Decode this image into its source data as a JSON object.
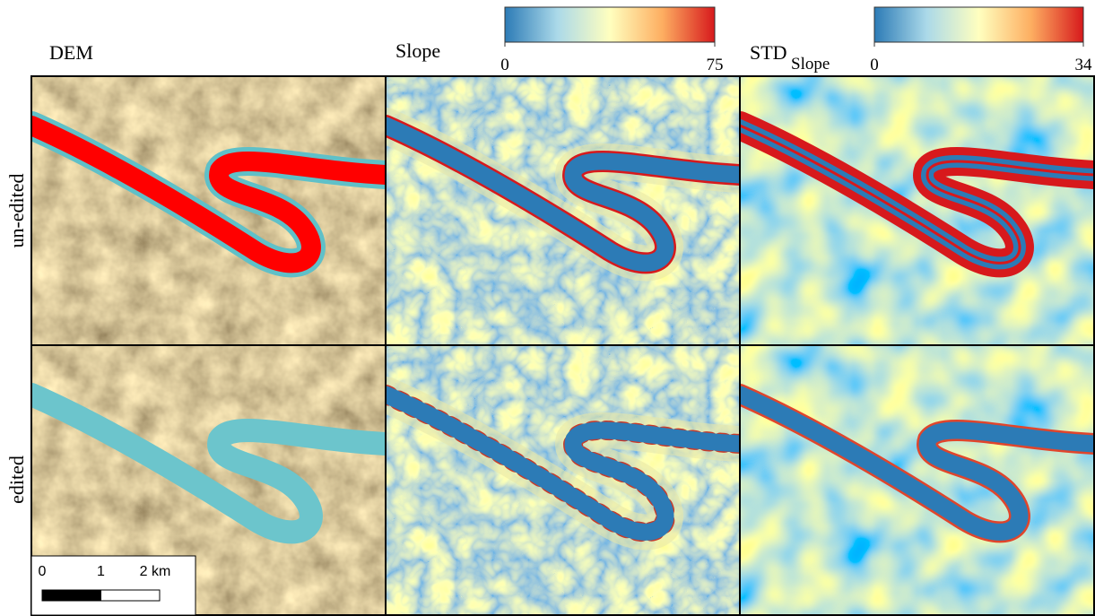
{
  "columns": [
    {
      "title": "DEM"
    },
    {
      "title": "Slope"
    },
    {
      "title": "STD",
      "subscript": "Slope"
    }
  ],
  "rows": [
    {
      "label": "un-edited"
    },
    {
      "label": "edited"
    }
  ],
  "colorbars": [
    {
      "for": "Slope",
      "ticks": [
        0,
        75
      ]
    },
    {
      "for": "STD",
      "ticks": [
        0,
        34
      ]
    }
  ],
  "scale_bar": {
    "ticks": [
      0,
      1,
      {
        "value": 2,
        "label": "2 km"
      }
    ]
  }
}
